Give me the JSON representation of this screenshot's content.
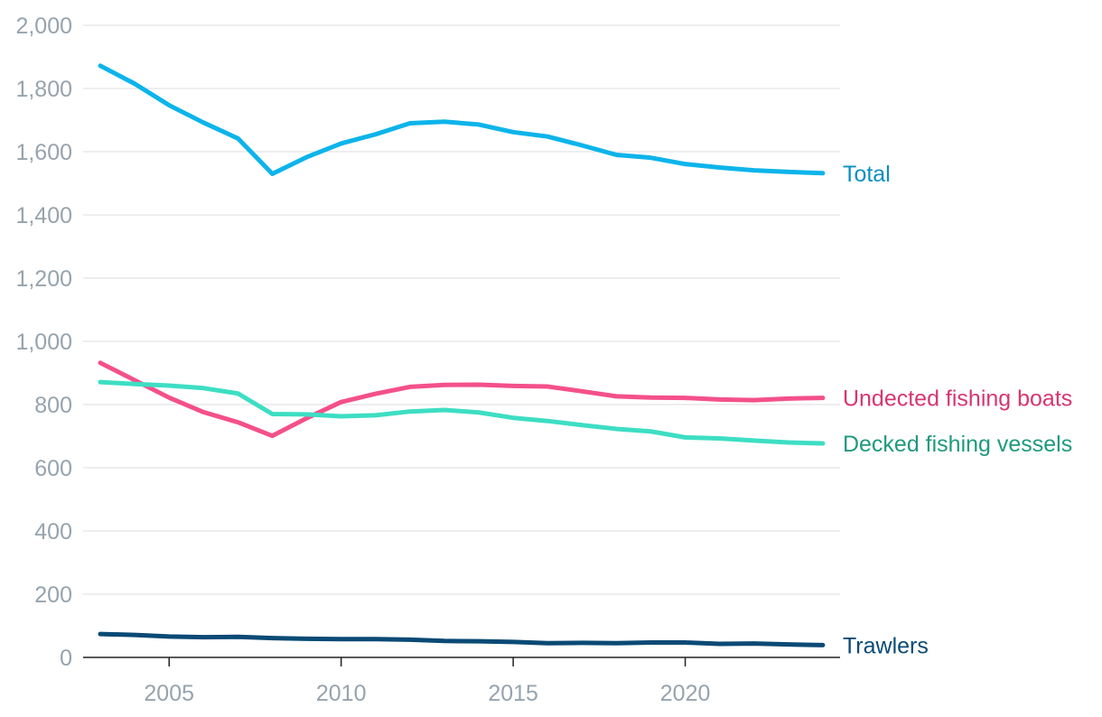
{
  "chart_data": {
    "type": "line",
    "title": "",
    "xlabel": "",
    "ylabel": "",
    "xlim": [
      2002.5,
      2024.5
    ],
    "ylim": [
      0,
      2000
    ],
    "y_ticks": [
      0,
      200,
      400,
      600,
      800,
      1000,
      1200,
      1400,
      1600,
      1800,
      2000
    ],
    "y_tick_labels": [
      "0",
      "200",
      "400",
      "600",
      "800",
      "1,000",
      "1,200",
      "1,400",
      "1,600",
      "1,800",
      "2,000"
    ],
    "x_ticks": [
      2005,
      2010,
      2015,
      2020
    ],
    "x_tick_labels": [
      "2005",
      "2010",
      "2015",
      "2020"
    ],
    "grid": true,
    "legend": "direct labels at right end of lines",
    "x": [
      2003,
      2004,
      2005,
      2006,
      2007,
      2008,
      2009,
      2010,
      2011,
      2012,
      2013,
      2014,
      2015,
      2016,
      2017,
      2018,
      2019,
      2020,
      2021,
      2022,
      2023,
      2024
    ],
    "series": [
      {
        "name": "Total",
        "color": "#0db4ea",
        "label_color": "#0a8fc4",
        "values": [
          1872,
          1815,
          1747,
          1692,
          1642,
          1530,
          1583,
          1626,
          1655,
          1690,
          1695,
          1686,
          1662,
          1648,
          1620,
          1590,
          1581,
          1561,
          1550,
          1541,
          1536,
          1532
        ]
      },
      {
        "name": "Undected fishing boats",
        "color": "#f4508a",
        "label_color": "#d63670",
        "values": [
          932,
          877,
          822,
          776,
          744,
          701,
          757,
          808,
          834,
          856,
          862,
          863,
          859,
          857,
          842,
          826,
          822,
          821,
          816,
          814,
          819,
          821
        ]
      },
      {
        "name": "Decked fishing vessels",
        "color": "#3ddec3",
        "label_color": "#1f9a7e",
        "values": [
          871,
          865,
          860,
          852,
          835,
          770,
          769,
          763,
          766,
          778,
          783,
          775,
          758,
          748,
          735,
          723,
          715,
          696,
          693,
          686,
          680,
          677
        ]
      },
      {
        "name": "Trawlers",
        "color": "#0a4a75",
        "label_color": "#0a4a75",
        "values": [
          74,
          71,
          66,
          64,
          65,
          61,
          59,
          58,
          58,
          56,
          52,
          51,
          49,
          45,
          46,
          45,
          47,
          47,
          43,
          44,
          41,
          39
        ]
      }
    ]
  }
}
